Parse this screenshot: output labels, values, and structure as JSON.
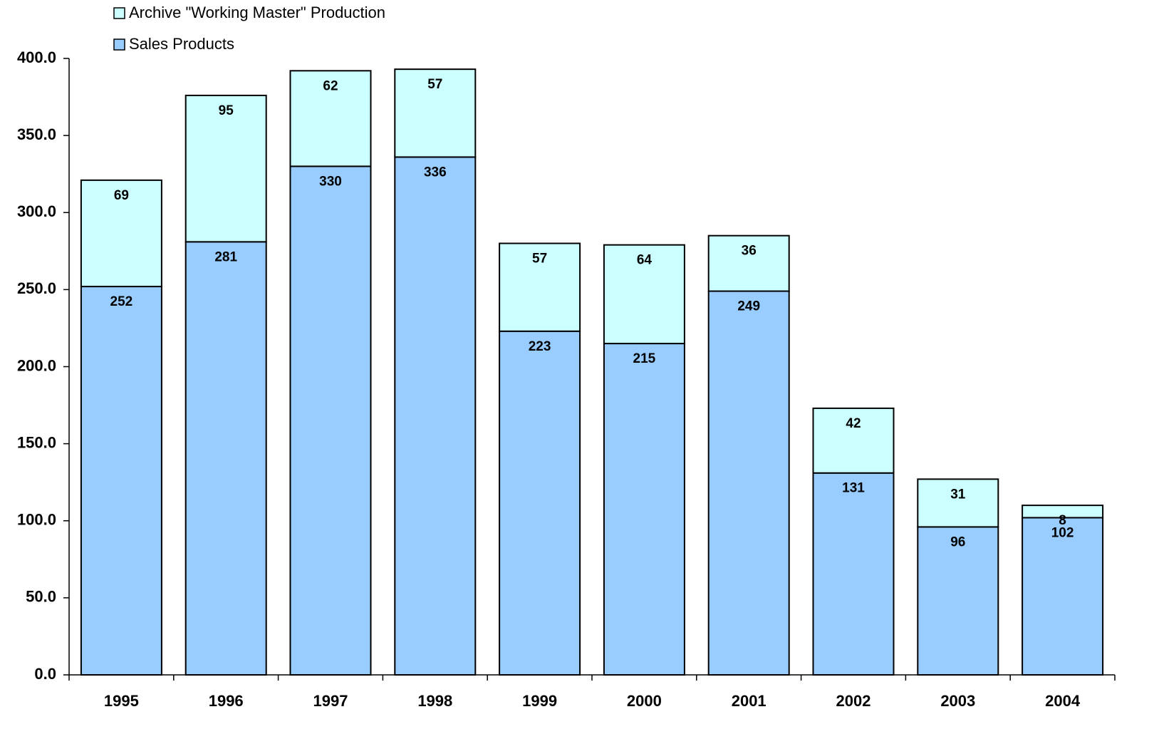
{
  "chart_data": {
    "type": "stacked_bar",
    "categories": [
      "1995",
      "1996",
      "1997",
      "1998",
      "1999",
      "2000",
      "2001",
      "2002",
      "2003",
      "2004"
    ],
    "series": [
      {
        "name": "Sales Products",
        "color": "#99ccff",
        "values": [
          252,
          281,
          330,
          336,
          223,
          215,
          249,
          131,
          96,
          102
        ]
      },
      {
        "name": "Archive \"Working Master\" Production",
        "color": "#ccffff",
        "values": [
          69,
          95,
          62,
          57,
          57,
          64,
          36,
          42,
          31,
          8
        ]
      }
    ],
    "ylim": [
      0,
      400
    ],
    "yticks": [
      {
        "value": 0,
        "label": "0.0"
      },
      {
        "value": 50,
        "label": "50.0"
      },
      {
        "value": 100,
        "label": "100.0"
      },
      {
        "value": 150,
        "label": "150.0"
      },
      {
        "value": 200,
        "label": "200.0"
      },
      {
        "value": 250,
        "label": "250.0"
      },
      {
        "value": 300,
        "label": "300.0"
      },
      {
        "value": 350,
        "label": "350.0"
      },
      {
        "value": 400,
        "label": "400.0"
      }
    ],
    "legend": "top-left"
  }
}
